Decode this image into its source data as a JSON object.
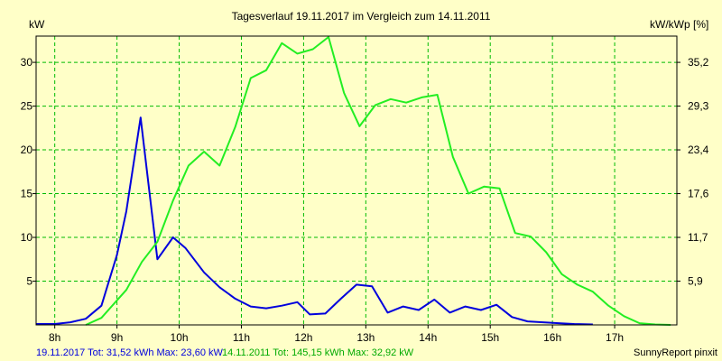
{
  "chart_data": {
    "type": "line",
    "title": "Tagesverlauf 19.11.2017 im Vergleich zum 14.11.2011",
    "ylabel_left": "kW",
    "ylabel_right": "kW/kWp [%]",
    "xlim": [
      7.7,
      18.0
    ],
    "ylim": [
      0,
      33
    ],
    "x_ticks": [
      {
        "value": 8,
        "label": "8h"
      },
      {
        "value": 9,
        "label": "9h"
      },
      {
        "value": 10,
        "label": "10h"
      },
      {
        "value": 11,
        "label": "11h"
      },
      {
        "value": 12,
        "label": "12h"
      },
      {
        "value": 13,
        "label": "13h"
      },
      {
        "value": 14,
        "label": "14h"
      },
      {
        "value": 15,
        "label": "15h"
      },
      {
        "value": 16,
        "label": "16h"
      },
      {
        "value": 17,
        "label": "17h"
      }
    ],
    "y_ticks_left": [
      {
        "value": 5,
        "label": "5"
      },
      {
        "value": 10,
        "label": "10"
      },
      {
        "value": 15,
        "label": "15"
      },
      {
        "value": 20,
        "label": "20"
      },
      {
        "value": 25,
        "label": "25"
      },
      {
        "value": 30,
        "label": "30"
      }
    ],
    "y_ticks_right": [
      {
        "value": 5,
        "label": "5,9"
      },
      {
        "value": 10,
        "label": "11,7"
      },
      {
        "value": 15,
        "label": "17,6"
      },
      {
        "value": 20,
        "label": "23,4"
      },
      {
        "value": 25,
        "label": "29,3"
      },
      {
        "value": 30,
        "label": "35,2"
      }
    ],
    "grid": true,
    "series": [
      {
        "color": "#0000dd",
        "x": [
          7.7,
          8.0,
          8.25,
          8.5,
          8.75,
          9.0,
          9.15,
          9.38,
          9.65,
          9.9,
          10.1,
          10.4,
          10.65,
          10.9,
          11.15,
          11.4,
          11.65,
          11.9,
          12.1,
          12.35,
          12.6,
          12.85,
          13.1,
          13.35,
          13.6,
          13.85,
          14.1,
          14.35,
          14.6,
          14.85,
          15.1,
          15.35,
          15.6,
          15.85,
          16.1,
          16.35,
          16.65
        ],
        "y": [
          0.1,
          0.1,
          0.3,
          0.7,
          2.2,
          8.0,
          13.0,
          23.7,
          7.5,
          10.0,
          8.8,
          6.0,
          4.3,
          3.0,
          2.1,
          1.9,
          2.2,
          2.6,
          1.2,
          1.3,
          3.0,
          4.6,
          4.4,
          1.4,
          2.1,
          1.7,
          2.9,
          1.4,
          2.1,
          1.7,
          2.3,
          0.9,
          0.4,
          0.3,
          0.2,
          0.1,
          0.05
        ]
      },
      {
        "color": "#22ee22",
        "x": [
          8.5,
          8.75,
          9.0,
          9.15,
          9.4,
          9.65,
          9.9,
          10.15,
          10.4,
          10.65,
          10.9,
          11.15,
          11.4,
          11.65,
          11.9,
          12.15,
          12.4,
          12.65,
          12.9,
          13.15,
          13.4,
          13.65,
          13.9,
          14.15,
          14.4,
          14.65,
          14.9,
          15.15,
          15.4,
          15.65,
          15.9,
          16.15,
          16.4,
          16.65,
          16.9,
          17.15,
          17.4,
          17.65,
          17.9
        ],
        "y": [
          0.0,
          0.8,
          2.8,
          4.0,
          7.2,
          9.5,
          14.2,
          18.2,
          19.8,
          18.2,
          22.6,
          28.2,
          29.1,
          32.2,
          31.0,
          31.5,
          32.9,
          26.5,
          22.7,
          25.1,
          25.8,
          25.4,
          26.0,
          26.3,
          19.2,
          15.0,
          15.8,
          15.6,
          10.5,
          10.1,
          8.3,
          5.8,
          4.6,
          3.8,
          2.2,
          1.0,
          0.2,
          0.05,
          0.0
        ]
      }
    ]
  },
  "footer": {
    "series1_text": "19.11.2017 Tot: 31,52 kWh Max: 23,60 kW",
    "series2_text": "14.11.2011 Tot: 145,15 kWh Max: 32,92 kW",
    "credit": "SunnyReport pinxit"
  },
  "colors": {
    "background": "#ffffc8",
    "grid": "#00bb00",
    "frame": "#000000"
  }
}
